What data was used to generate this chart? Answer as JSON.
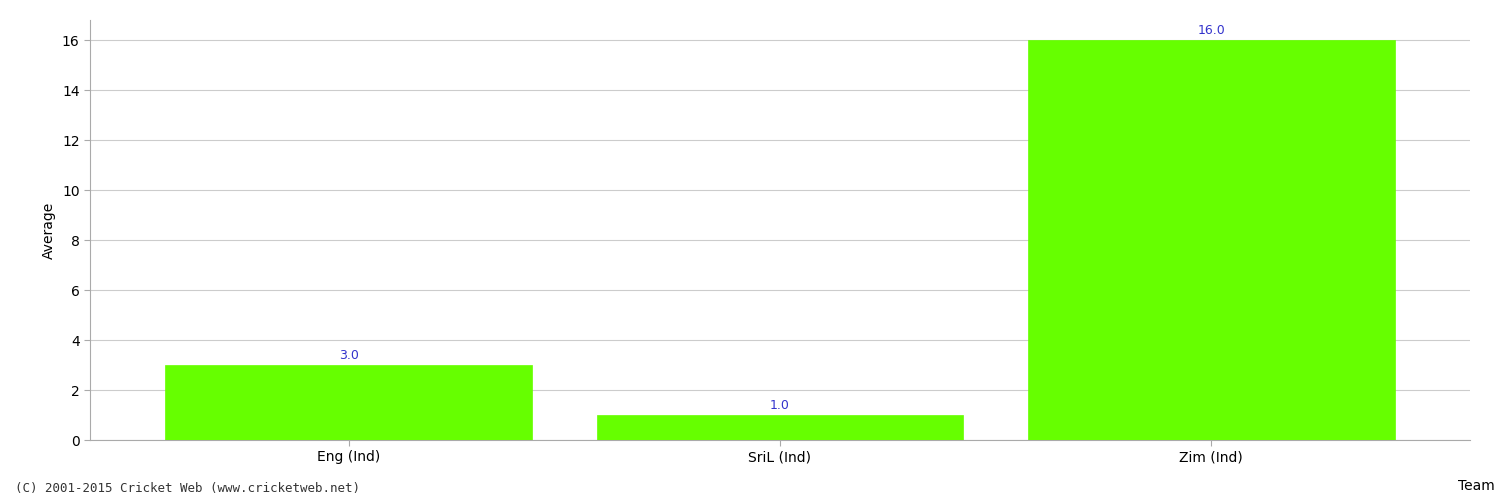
{
  "categories": [
    "Eng (Ind)",
    "SriL (Ind)",
    "Zim (Ind)"
  ],
  "values": [
    3.0,
    1.0,
    16.0
  ],
  "bar_color": "#66ff00",
  "bar_edge_color": "#66ff00",
  "value_color": "#3333cc",
  "xlabel": "Team",
  "ylabel": "Average",
  "ylim": [
    0,
    16.8
  ],
  "yticks": [
    0,
    2,
    4,
    6,
    8,
    10,
    12,
    14,
    16
  ],
  "background_color": "#ffffff",
  "grid_color": "#cccccc",
  "tick_label_fontsize": 10,
  "axis_label_fontsize": 10,
  "value_label_fontsize": 9,
  "footer_text": "(C) 2001-2015 Cricket Web (www.cricketweb.net)",
  "footer_fontsize": 9,
  "footer_color": "#333333"
}
